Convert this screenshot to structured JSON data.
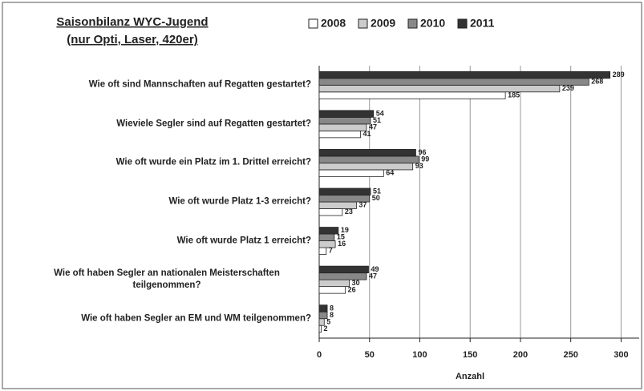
{
  "chart_data": {
    "type": "bar",
    "orientation": "horizontal",
    "title": "Saisonbilanz WYC-Jugend",
    "subtitle": "(nur Opti, Laser, 420er)",
    "x_label": "Anzahl",
    "categories": [
      "Wie oft sind Mannschaften auf Regatten gestartet?",
      "Wieviele Segler sind auf Regatten gestartet?",
      "Wie oft wurde ein Platz im 1. Drittel erreicht?",
      "Wie oft wurde Platz 1-3 erreicht?",
      "Wie oft wurde Platz 1 erreicht?",
      "Wie oft haben Segler an nationalen Meisterschaften teilgenommen?",
      "Wie oft haben Segler an EM und WM teilgenommen?"
    ],
    "series": [
      {
        "name": "2008",
        "color": "#ffffff",
        "values": [
          185,
          41,
          64,
          23,
          7,
          26,
          2
        ]
      },
      {
        "name": "2009",
        "color": "#cccccc",
        "values": [
          239,
          47,
          93,
          37,
          16,
          30,
          5
        ]
      },
      {
        "name": "2010",
        "color": "#888888",
        "values": [
          268,
          51,
          99,
          50,
          15,
          47,
          8
        ]
      },
      {
        "name": "2011",
        "color": "#333333",
        "values": [
          289,
          54,
          96,
          51,
          19,
          49,
          8
        ]
      }
    ],
    "xlim": [
      0,
      318
    ],
    "xticks": [
      0,
      50,
      100,
      150,
      200,
      250,
      300
    ],
    "grid": true
  }
}
